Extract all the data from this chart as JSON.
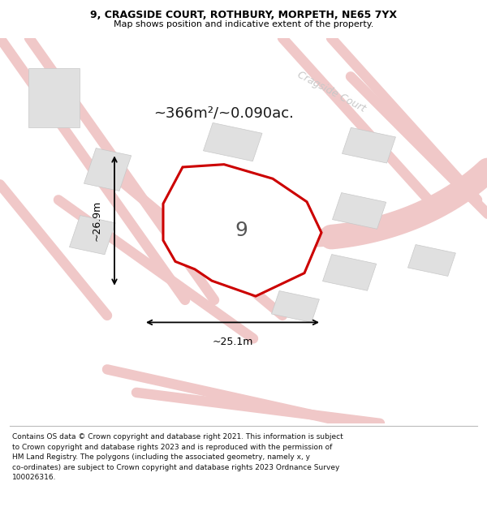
{
  "title": "9, CRAGSIDE COURT, ROTHBURY, MORPETH, NE65 7YX",
  "subtitle": "Map shows position and indicative extent of the property.",
  "footer_text": "Contains OS data © Crown copyright and database right 2021. This information is subject\nto Crown copyright and database rights 2023 and is reproduced with the permission of\nHM Land Registry. The polygons (including the associated geometry, namely x, y\nco-ordinates) are subject to Crown copyright and database rights 2023 Ordnance Survey\n100026316.",
  "area_text": "~366m²/~0.090ac.",
  "street_label": "Cragside Court",
  "plot_number": "9",
  "width_label": "~25.1m",
  "height_label": "~26.9m",
  "bg_color": "#ffffff",
  "map_bg": "#f2f2f2",
  "road_color": "#f0c8c8",
  "building_fill": "#e0e0e0",
  "building_stroke": "#c8c8c8",
  "plot_fill": "#ffffff",
  "plot_stroke": "#cc0000",
  "title_fontsize": 9,
  "subtitle_fontsize": 8,
  "area_fontsize": 13,
  "label_fontsize": 9,
  "footer_fontsize": 6.5,
  "street_fontsize": 9,
  "plot_num_fontsize": 18
}
